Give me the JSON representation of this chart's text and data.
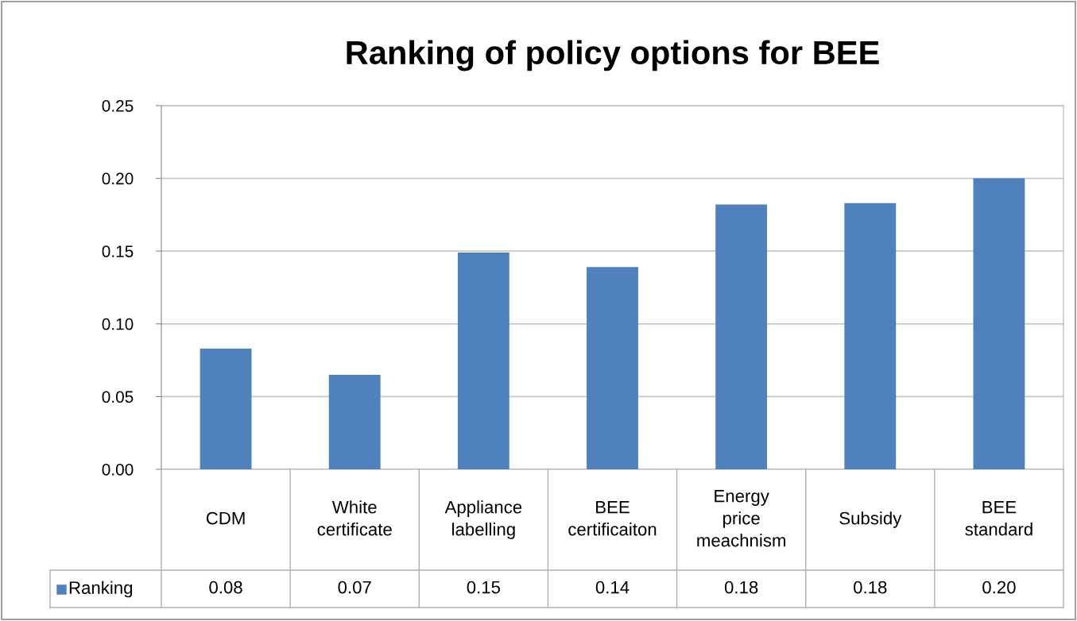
{
  "chart_data": {
    "type": "bar",
    "title": "Ranking of policy options for BEE",
    "categories": [
      "CDM",
      "White\ncertificate",
      "Appliance\nlabelling",
      "BEE\ncertificaiton",
      "Energy\nprice\nmeachnism",
      "Subsidy",
      "BEE\nstandard"
    ],
    "series": [
      {
        "name": "Ranking",
        "color": "#4f81bd",
        "values": [
          0.083,
          0.065,
          0.149,
          0.139,
          0.182,
          0.183,
          0.2
        ],
        "value_labels": [
          "0.08",
          "0.07",
          "0.15",
          "0.14",
          "0.18",
          "0.18",
          "0.20"
        ]
      }
    ],
    "ylim": [
      0,
      0.25
    ],
    "yticks": [
      {
        "value": 0,
        "label": "0.00"
      },
      {
        "value": 0.05,
        "label": "0.05"
      },
      {
        "value": 0.1,
        "label": "0.10"
      },
      {
        "value": 0.15,
        "label": "0.15"
      },
      {
        "value": 0.2,
        "label": "0.20"
      },
      {
        "value": 0.25,
        "label": "0.25"
      }
    ],
    "grid": "y"
  }
}
